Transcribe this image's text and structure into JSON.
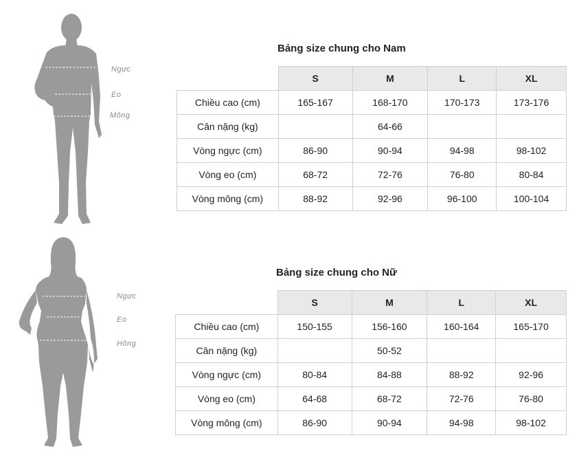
{
  "men": {
    "title": "Bảng size chung cho Nam",
    "measure_labels": [
      "Ngực",
      "Eo",
      "Mông"
    ],
    "sizes": [
      "S",
      "M",
      "L",
      "XL"
    ],
    "rows": [
      {
        "label": "Chiều cao (cm)",
        "cells": [
          "165-167",
          "168-170",
          "170-173",
          "173-176"
        ]
      },
      {
        "label": "Cân nặng (kg)",
        "cells": [
          "",
          "64-66",
          "",
          ""
        ]
      },
      {
        "label": "Vòng ngực (cm)",
        "cells": [
          "86-90",
          "90-94",
          "94-98",
          "98-102"
        ]
      },
      {
        "label": "Vòng eo (cm)",
        "cells": [
          "68-72",
          "72-76",
          "76-80",
          "80-84"
        ]
      },
      {
        "label": "Vòng mông (cm)",
        "cells": [
          "88-92",
          "92-96",
          "96-100",
          "100-104"
        ]
      }
    ]
  },
  "women": {
    "title": "Bảng size chung cho Nữ",
    "measure_labels": [
      "Ngực",
      "Eo",
      "Hông"
    ],
    "sizes": [
      "S",
      "M",
      "L",
      "XL"
    ],
    "rows": [
      {
        "label": "Chiều cao (cm)",
        "cells": [
          "150-155",
          "156-160",
          "160-164",
          "165-170"
        ]
      },
      {
        "label": "Cân nặng (kg)",
        "cells": [
          "",
          "50-52",
          "",
          ""
        ]
      },
      {
        "label": "Vòng ngực (cm)",
        "cells": [
          "80-84",
          "84-88",
          "88-92",
          "92-96"
        ]
      },
      {
        "label": "Vòng eo (cm)",
        "cells": [
          "64-68",
          "68-72",
          "72-76",
          "76-80"
        ]
      },
      {
        "label": "Vòng mông (cm)",
        "cells": [
          "86-90",
          "90-94",
          "94-98",
          "98-102"
        ]
      }
    ]
  },
  "colors": {
    "figure": "#9a9a9a",
    "header_bg": "#e9e9e9",
    "border": "#cfcfcf"
  }
}
